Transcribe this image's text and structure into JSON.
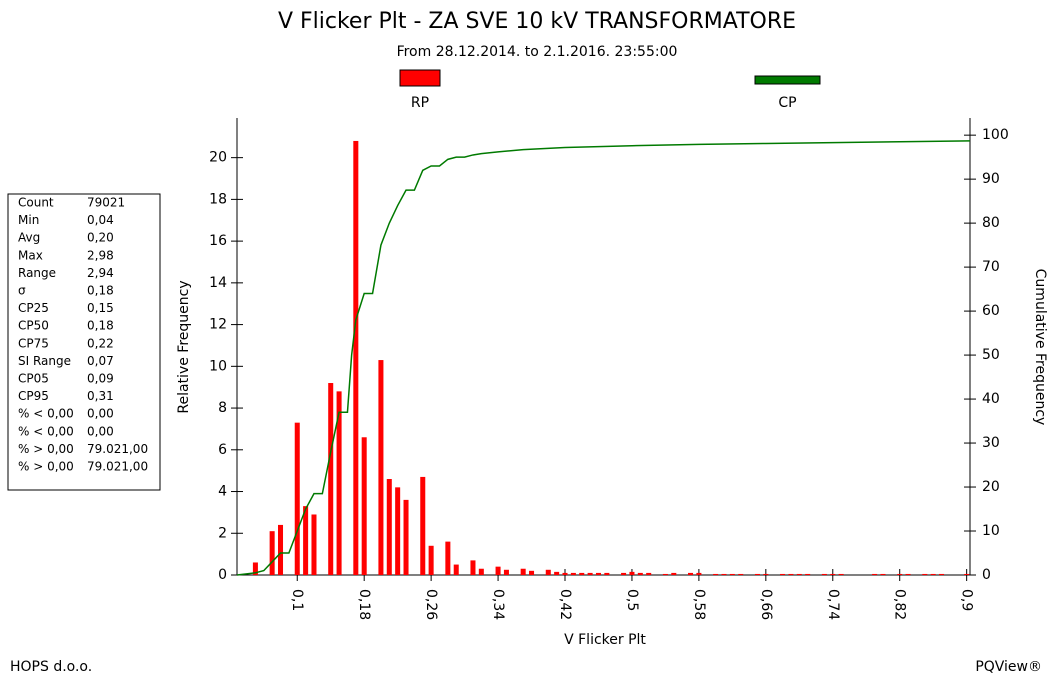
{
  "chart_data": {
    "type": "histogram",
    "title": "V Flicker Plt - ZA SVE 10 kV TRANSFORMATORE",
    "subtitle": "From 28.12.2014. to 2.1.2016. 23:55:00",
    "xlabel": "V Flicker Plt",
    "ylabel": "Relative Frequency",
    "y2label": "Cumulative Frequency",
    "xlim": [
      0.028,
      0.904
    ],
    "ylim": [
      0,
      21.9
    ],
    "y2lim": [
      0,
      103.9
    ],
    "xticks": [
      {
        "value": 0.1,
        "label": "0,1"
      },
      {
        "value": 0.18,
        "label": "0,18"
      },
      {
        "value": 0.26,
        "label": "0,26"
      },
      {
        "value": 0.34,
        "label": "0,34"
      },
      {
        "value": 0.42,
        "label": "0,42"
      },
      {
        "value": 0.5,
        "label": "0,5"
      },
      {
        "value": 0.58,
        "label": "0,58"
      },
      {
        "value": 0.66,
        "label": "0,66"
      },
      {
        "value": 0.74,
        "label": "0,74"
      },
      {
        "value": 0.82,
        "label": "0,82"
      },
      {
        "value": 0.9,
        "label": "0,9"
      }
    ],
    "yticks": [
      0,
      2,
      4,
      6,
      8,
      10,
      12,
      14,
      16,
      18,
      20
    ],
    "y2ticks": [
      0,
      10,
      20,
      30,
      40,
      50,
      60,
      70,
      80,
      90,
      100
    ],
    "bins": [
      0.045,
      0.055,
      0.065,
      0.075,
      0.085,
      0.095,
      0.105,
      0.115,
      0.125,
      0.135,
      0.145,
      0.155,
      0.165,
      0.175,
      0.185,
      0.195,
      0.205,
      0.215,
      0.225,
      0.235,
      0.245,
      0.255,
      0.265,
      0.275,
      0.285,
      0.295,
      0.305,
      0.315,
      0.325,
      0.335,
      0.345,
      0.355,
      0.365,
      0.375,
      0.385,
      0.395,
      0.405,
      0.415,
      0.425,
      0.435,
      0.445,
      0.455,
      0.465,
      0.475,
      0.485,
      0.495,
      0.505,
      0.515,
      0.525,
      0.535,
      0.545,
      0.555,
      0.565,
      0.575,
      0.585,
      0.595,
      0.605,
      0.615,
      0.625,
      0.635,
      0.645,
      0.655,
      0.665,
      0.675,
      0.685,
      0.695,
      0.705,
      0.715,
      0.725,
      0.735,
      0.745,
      0.755,
      0.765,
      0.775,
      0.785,
      0.795,
      0.805,
      0.815,
      0.825,
      0.835,
      0.845,
      0.855,
      0.865,
      0.875,
      0.885,
      0.895,
      0.905
    ],
    "series": [
      {
        "name": "RP",
        "color": "#ff0000",
        "type": "histogram",
        "values": [
          0.6,
          0,
          2.1,
          2.4,
          0,
          7.3,
          3.3,
          2.9,
          0,
          9.2,
          8.8,
          0,
          20.8,
          6.6,
          0,
          10.3,
          4.6,
          4.2,
          3.6,
          0,
          4.7,
          1.4,
          0,
          1.6,
          0.5,
          0,
          0.7,
          0.3,
          0,
          0.4,
          0.25,
          0,
          0.3,
          0.2,
          0,
          0.25,
          0.15,
          0.1,
          0.1,
          0.1,
          0.1,
          0.1,
          0.1,
          0,
          0.1,
          0.15,
          0.1,
          0.1,
          0,
          0.05,
          0.1,
          0,
          0.1,
          0.1,
          0,
          0.05,
          0.05,
          0.05,
          0.05,
          0,
          0.05,
          0.05,
          0,
          0.05,
          0.05,
          0.05,
          0.05,
          0,
          0.05,
          0.05,
          0.05,
          0,
          0,
          0,
          0.05,
          0.05,
          0,
          0.05,
          0.05,
          0,
          0.05,
          0.05,
          0.05,
          0,
          0,
          0.05
        ]
      },
      {
        "name": "CP",
        "color": "#007a00",
        "type": "line",
        "axis": "y2",
        "x": [
          0.028,
          0.05,
          0.06,
          0.07,
          0.08,
          0.09,
          0.1,
          0.11,
          0.12,
          0.13,
          0.14,
          0.15,
          0.16,
          0.165,
          0.17,
          0.18,
          0.19,
          0.2,
          0.21,
          0.22,
          0.23,
          0.24,
          0.25,
          0.26,
          0.27,
          0.28,
          0.29,
          0.3,
          0.31,
          0.32,
          0.34,
          0.37,
          0.42,
          0.5,
          0.58,
          0.66,
          0.74,
          0.82,
          0.904
        ],
        "values": [
          0,
          0.5,
          1,
          3,
          5,
          5,
          10,
          15,
          18.5,
          18.5,
          28,
          37,
          37,
          50,
          58,
          64,
          64,
          75,
          80,
          84,
          87.5,
          87.5,
          92,
          93,
          93,
          94.5,
          95,
          95,
          95.5,
          95.8,
          96.2,
          96.7,
          97.2,
          97.6,
          97.9,
          98.1,
          98.3,
          98.5,
          98.7
        ]
      }
    ]
  },
  "stats": {
    "rows": [
      [
        "Count",
        "79021"
      ],
      [
        "Min",
        "0,04"
      ],
      [
        "Avg",
        "0,20"
      ],
      [
        "Max",
        "2,98"
      ],
      [
        "Range",
        "2,94"
      ],
      [
        "σ",
        "0,18"
      ],
      [
        "CP25",
        "0,15"
      ],
      [
        "CP50",
        "0,18"
      ],
      [
        "CP75",
        "0,22"
      ],
      [
        "SI Range",
        "0,07"
      ],
      [
        "CP05",
        "0,09"
      ],
      [
        "CP95",
        "0,31"
      ],
      [
        "% < 0,00",
        "0,00"
      ],
      [
        "% < 0,00",
        "0,00"
      ],
      [
        "% > 0,00",
        "79.021,00"
      ],
      [
        "% > 0,00",
        "79.021,00"
      ]
    ]
  },
  "footer": {
    "left": "HOPS d.o.o.",
    "right": "PQView®"
  }
}
